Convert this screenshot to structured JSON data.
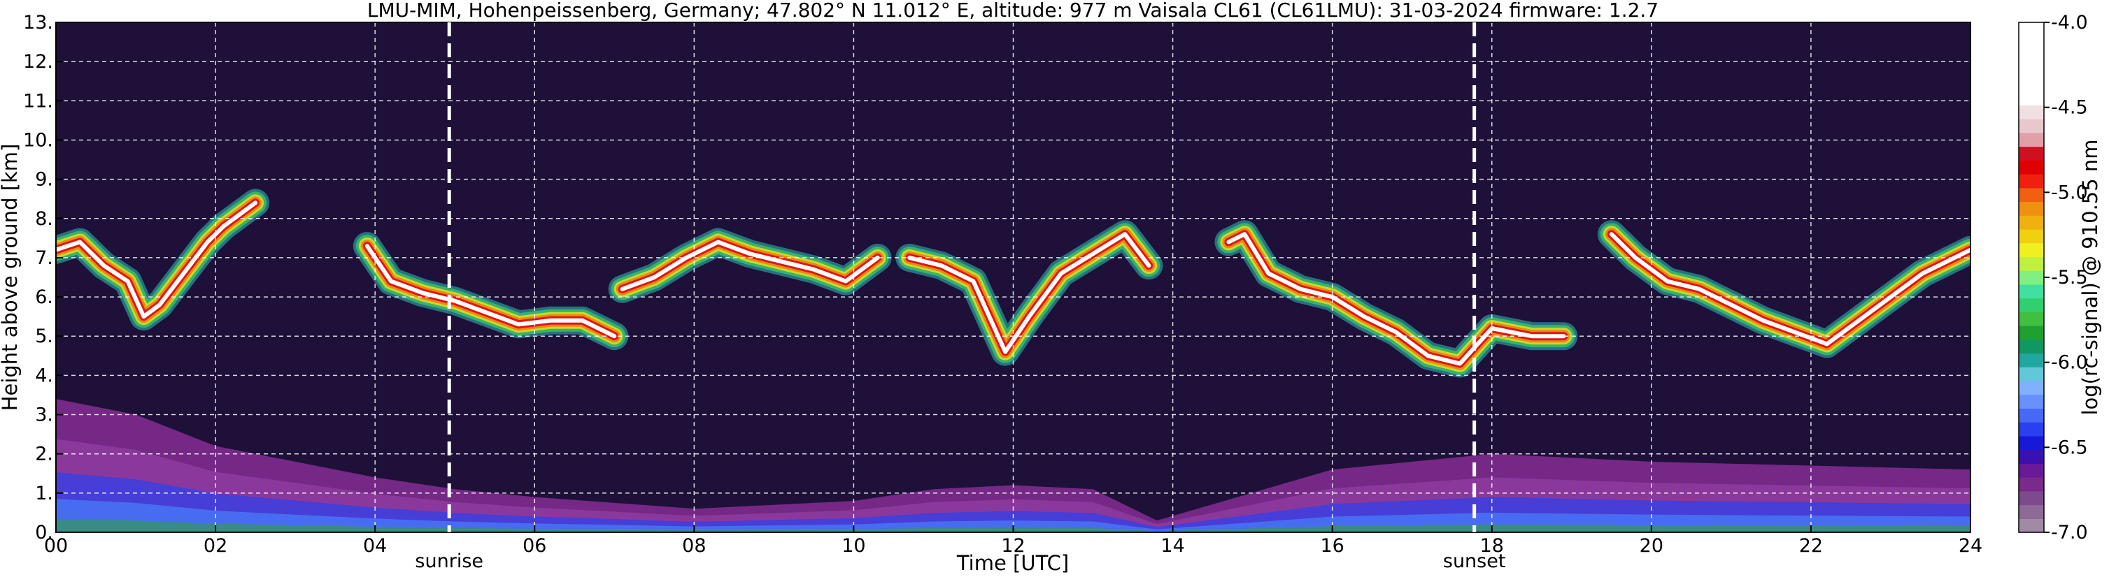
{
  "chart_data": {
    "type": "heatmap",
    "title": "LMU-MIM, Hohenpeissenberg, Germany; 47.802° N 11.012° E, altitude: 977 m    Vaisala CL61 (CL61LMU): 31-03-2024    firmware: 1.2.7",
    "xlabel": "Time [UTC]",
    "ylabel": "Height above ground [km]",
    "xlim": [
      0,
      24
    ],
    "ylim": [
      0,
      13
    ],
    "x_ticks": [
      "00",
      "02",
      "04",
      "06",
      "08",
      "10",
      "12",
      "14",
      "16",
      "18",
      "20",
      "22",
      "24"
    ],
    "y_ticks": [
      "0.",
      "1.",
      "2.",
      "3.",
      "4.",
      "5.",
      "6.",
      "7.",
      "8.",
      "9.",
      "10.",
      "11.",
      "12.",
      "13."
    ],
    "grid": true,
    "colorbar": {
      "label": "log(rc-signal) @ 910.55 nm",
      "range": [
        -7.0,
        -4.0
      ],
      "ticks": [
        "-4.0",
        "-4.5",
        "-5.0",
        "-5.5",
        "-6.0",
        "-6.5",
        "-7.0"
      ],
      "colors": [
        "#a08aa4",
        "#8e6a96",
        "#7e4a8e",
        "#7a2a8a",
        "#6a1a96",
        "#3a10b0",
        "#1818d8",
        "#2840f0",
        "#4868f8",
        "#6890ff",
        "#80b0ff",
        "#60c8d8",
        "#20a8a0",
        "#109860",
        "#20a030",
        "#40c040",
        "#30d070",
        "#40e0a0",
        "#80f080",
        "#c0f040",
        "#f0f020",
        "#f0d010",
        "#f0b010",
        "#f09010",
        "#f06010",
        "#f02010",
        "#e00000",
        "#d01020",
        "#e0a0a8",
        "#e8c8cc",
        "#f0e0e2",
        "#ffffff",
        "#ffffff",
        "#ffffff",
        "#ffffff",
        "#ffffff",
        "#ffffff"
      ]
    },
    "vlines": [
      {
        "label": "sunrise",
        "x": 4.93
      },
      {
        "label": "sunset",
        "x": 17.78
      }
    ],
    "cloud_layers": [
      {
        "x": [
          0.0,
          0.3,
          0.6,
          0.9,
          1.1,
          1.3,
          1.6,
          1.9,
          2.1,
          2.3,
          2.5
        ],
        "y": [
          7.2,
          7.4,
          6.8,
          6.4,
          5.5,
          5.8,
          6.6,
          7.4,
          7.8,
          8.1,
          8.4
        ]
      },
      {
        "x": [
          3.9,
          4.2,
          4.6,
          5.0,
          5.4,
          5.8,
          6.2,
          6.6,
          7.0
        ],
        "y": [
          7.3,
          6.4,
          6.1,
          5.9,
          5.6,
          5.3,
          5.4,
          5.4,
          5.0
        ]
      },
      {
        "x": [
          7.1,
          7.5,
          7.9,
          8.3,
          8.7,
          9.1,
          9.5,
          9.9,
          10.3
        ],
        "y": [
          6.2,
          6.5,
          7.0,
          7.4,
          7.1,
          6.9,
          6.7,
          6.4,
          7.0
        ]
      },
      {
        "x": [
          10.7,
          11.1,
          11.5,
          11.9,
          12.2,
          12.6,
          13.0,
          13.4,
          13.7
        ],
        "y": [
          7.0,
          6.8,
          6.4,
          4.6,
          5.5,
          6.6,
          7.1,
          7.6,
          6.8
        ]
      },
      {
        "x": [
          14.7,
          14.9,
          15.2,
          15.6,
          16.0,
          16.4,
          16.8,
          17.2,
          17.6,
          18.0,
          18.5,
          18.9
        ],
        "y": [
          7.4,
          7.6,
          6.6,
          6.2,
          6.0,
          5.5,
          5.1,
          4.5,
          4.3,
          5.2,
          5.0,
          5.0
        ]
      },
      {
        "x": [
          19.5,
          19.8,
          20.2,
          20.6,
          21.0,
          21.4,
          21.8,
          22.2,
          22.6,
          23.0,
          23.4,
          23.8,
          24.0
        ],
        "y": [
          7.6,
          7.0,
          6.4,
          6.2,
          5.8,
          5.4,
          5.1,
          4.8,
          5.4,
          6.0,
          6.6,
          7.0,
          7.2
        ]
      }
    ],
    "boundary_layer": {
      "x": [
        0.0,
        1.0,
        2.0,
        3.0,
        4.0,
        5.0,
        6.0,
        8.0,
        10.0,
        11.0,
        12.0,
        13.0,
        13.8,
        16.0,
        18.0,
        20.0,
        22.0,
        24.0
      ],
      "y": [
        3.4,
        3.0,
        2.2,
        1.8,
        1.4,
        1.1,
        0.9,
        0.6,
        0.8,
        1.1,
        1.2,
        1.1,
        0.3,
        1.6,
        2.0,
        1.8,
        1.7,
        1.6
      ]
    }
  }
}
